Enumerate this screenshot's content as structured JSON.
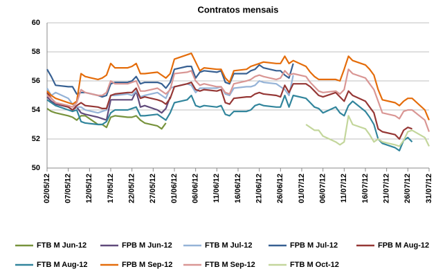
{
  "chart_data": {
    "type": "line",
    "title": "Contratos mensais",
    "x": [
      "02/05/12",
      "03/05/12",
      "04/05/12",
      "07/05/12",
      "08/05/12",
      "09/05/12",
      "10/05/12",
      "11/05/12",
      "14/05/12",
      "15/05/12",
      "16/05/12",
      "17/05/12",
      "18/05/12",
      "21/05/12",
      "22/05/12",
      "23/05/12",
      "24/05/12",
      "25/05/12",
      "28/05/12",
      "29/05/12",
      "30/05/12",
      "31/05/12",
      "01/06/12",
      "04/06/12",
      "05/06/12",
      "06/06/12",
      "07/06/12",
      "08/06/12",
      "11/06/12",
      "12/06/12",
      "13/06/12",
      "14/06/12",
      "15/06/12",
      "18/06/12",
      "19/06/12",
      "20/06/12",
      "21/06/12",
      "22/06/12",
      "25/06/12",
      "26/06/12",
      "27/06/12",
      "28/06/12",
      "29/06/12",
      "02/07/12",
      "03/07/12",
      "04/07/12",
      "05/07/12",
      "06/07/12",
      "09/07/12",
      "10/07/12",
      "11/07/12",
      "12/07/12",
      "13/07/12",
      "16/07/12",
      "17/07/12",
      "18/07/12",
      "19/07/12",
      "20/07/12",
      "23/07/12",
      "24/07/12",
      "25/07/12",
      "26/07/12",
      "27/07/12",
      "30/07/12",
      "31/07/12"
    ],
    "xlim": [
      "02/05/12",
      "31/07/12"
    ],
    "xticks": [
      "02/05/12",
      "07/05/12",
      "12/05/12",
      "17/05/12",
      "22/05/12",
      "27/05/12",
      "01/06/12",
      "06/06/12",
      "11/06/12",
      "16/06/12",
      "21/06/12",
      "26/06/12",
      "01/07/12",
      "06/07/12",
      "11/07/12",
      "16/07/12",
      "21/07/12",
      "26/07/12",
      "31/07/12"
    ],
    "ylim": [
      50,
      60
    ],
    "yticks": [
      50,
      52,
      54,
      56,
      58,
      60
    ],
    "grid": true,
    "series": [
      {
        "name": "FTB M Jun-12",
        "color": "#77933c",
        "values": [
          54.1,
          53.9,
          53.8,
          53.6,
          53.5,
          53.3,
          53.6,
          53.6,
          53.0,
          53.0,
          52.8,
          53.5,
          53.6,
          53.5,
          53.5,
          53.6,
          53.3,
          53.1,
          52.9,
          52.7,
          53.1,
          null,
          null,
          null,
          null,
          null,
          null,
          null,
          null,
          null,
          null,
          null,
          null,
          null,
          null,
          null,
          null,
          null,
          null,
          null,
          null,
          null,
          null,
          null,
          null,
          null,
          null,
          null,
          null,
          null,
          null,
          null,
          null,
          null,
          null,
          null,
          null,
          null,
          null,
          null,
          null,
          null,
          null,
          null,
          null
        ]
      },
      {
        "name": "FPB M Jun-12",
        "color": "#604a7b",
        "values": [
          54.9,
          54.6,
          54.4,
          54.2,
          54.0,
          54.2,
          53.8,
          53.7,
          53.5,
          53.4,
          53.3,
          54.7,
          54.7,
          54.7,
          54.7,
          55.3,
          54.2,
          54.3,
          54.0,
          53.8,
          54.1,
          54.9,
          null,
          null,
          null,
          null,
          null,
          null,
          null,
          null,
          null,
          null,
          null,
          null,
          null,
          null,
          null,
          null,
          null,
          null,
          null,
          null,
          null,
          null,
          null,
          null,
          null,
          null,
          null,
          null,
          null,
          null,
          null,
          null,
          null,
          null,
          null,
          null,
          null,
          null,
          null,
          null,
          null,
          null,
          null
        ]
      },
      {
        "name": "FTB M Jul-12",
        "color": "#95b3d7",
        "values": [
          55.5,
          55.0,
          55.2,
          54.8,
          54.4,
          54.2,
          54.2,
          54.0,
          53.8,
          53.9,
          54.0,
          55.0,
          55.0,
          55.1,
          55.0,
          55.3,
          54.9,
          55.0,
          55.2,
          55.0,
          54.8,
          55.5,
          55.6,
          55.8,
          55.7,
          55.2,
          55.5,
          55.5,
          55.5,
          55.6,
          55.1,
          55.0,
          55.5,
          55.6,
          55.6,
          55.7,
          56.0,
          55.9,
          55.8,
          55.6,
          55.4,
          55.0,
          56.4,
          null,
          null,
          null,
          null,
          null,
          null,
          null,
          null,
          null,
          null,
          null,
          null,
          null,
          null,
          null,
          null,
          null,
          null,
          null,
          null,
          null,
          null
        ]
      },
      {
        "name": "FPB M Jul-12",
        "color": "#376092",
        "values": [
          56.8,
          56.3,
          55.7,
          55.6,
          55.6,
          55.1,
          55.2,
          55.2,
          55.0,
          54.9,
          55.0,
          55.8,
          55.9,
          55.9,
          56.0,
          56.3,
          55.8,
          55.9,
          55.9,
          55.8,
          55.5,
          55.9,
          56.8,
          57.0,
          57.0,
          56.2,
          56.6,
          56.7,
          56.6,
          56.7,
          55.9,
          55.8,
          56.5,
          56.5,
          56.7,
          56.8,
          57.1,
          56.9,
          56.7,
          56.7,
          56.4,
          56.2,
          57.2,
          null,
          null,
          null,
          null,
          null,
          null,
          null,
          null,
          null,
          null,
          null,
          null,
          null,
          null,
          null,
          null,
          null,
          null,
          null,
          null,
          null,
          null
        ]
      },
      {
        "name": "FPB M Aug-12",
        "color": "#953735",
        "values": [
          55.2,
          54.8,
          54.5,
          54.2,
          54.0,
          54.3,
          54.5,
          54.3,
          54.2,
          54.1,
          54.1,
          55.0,
          55.1,
          55.2,
          55.2,
          55.5,
          54.8,
          54.9,
          54.7,
          54.6,
          54.4,
          54.8,
          55.6,
          55.8,
          55.9,
          55.4,
          55.3,
          55.4,
          55.3,
          55.4,
          54.5,
          54.4,
          54.8,
          54.9,
          54.9,
          55.1,
          55.2,
          55.1,
          55.0,
          54.9,
          55.7,
          55.2,
          55.8,
          55.8,
          55.6,
          55.3,
          55.0,
          54.9,
          55.2,
          54.9,
          54.6,
          55.3,
          55.0,
          54.6,
          54.2,
          53.8,
          52.7,
          52.5,
          52.3,
          52.0,
          52.6,
          52.8,
          52.7,
          null,
          null
        ]
      },
      {
        "name": "FTB M Aug-12",
        "color": "#31859c",
        "values": [
          54.7,
          54.5,
          54.3,
          54.0,
          53.9,
          54.0,
          53.2,
          53.1,
          53.0,
          53.0,
          53.2,
          53.8,
          54.0,
          54.0,
          54.1,
          54.2,
          53.6,
          53.6,
          53.7,
          53.5,
          53.3,
          53.8,
          54.5,
          54.7,
          55.0,
          54.3,
          54.2,
          54.3,
          54.2,
          54.3,
          53.7,
          53.6,
          53.9,
          53.9,
          54.0,
          54.3,
          54.4,
          54.3,
          54.2,
          54.2,
          55.0,
          54.2,
          55.0,
          54.8,
          54.5,
          54.2,
          54.1,
          53.8,
          54.2,
          53.8,
          53.6,
          54.3,
          54.6,
          53.9,
          53.5,
          53.0,
          52.0,
          51.7,
          51.4,
          51.2,
          51.9,
          52.1,
          51.8,
          null,
          null
        ]
      },
      {
        "name": "FPB M Sep-12",
        "color": "#e46c0a",
        "values": [
          55.3,
          55.0,
          54.8,
          54.5,
          54.4,
          54.6,
          56.5,
          56.3,
          56.1,
          56.2,
          56.4,
          57.2,
          56.9,
          56.9,
          57.0,
          57.2,
          56.5,
          56.5,
          56.6,
          56.4,
          56.2,
          56.5,
          57.5,
          57.8,
          57.9,
          57.3,
          56.7,
          56.9,
          56.8,
          56.8,
          56.2,
          55.9,
          56.7,
          56.8,
          57.0,
          57.1,
          57.2,
          57.3,
          57.2,
          57.2,
          57.7,
          57.2,
          57.4,
          57.0,
          56.6,
          56.3,
          56.1,
          56.1,
          56.1,
          56.0,
          56.8,
          57.7,
          57.4,
          57.1,
          56.8,
          56.4,
          55.4,
          54.7,
          54.5,
          54.3,
          54.6,
          54.8,
          54.8,
          54.0,
          53.3
        ]
      },
      {
        "name": "FTB M Sep-12",
        "color": "#d99694",
        "values": [
          55.0,
          54.8,
          54.5,
          54.3,
          54.2,
          54.5,
          55.4,
          55.2,
          55.0,
          55.0,
          55.2,
          56.0,
          55.8,
          55.8,
          55.9,
          56.0,
          55.3,
          55.3,
          55.5,
          55.3,
          55.1,
          55.4,
          56.5,
          56.6,
          56.7,
          56.0,
          55.7,
          55.8,
          55.6,
          55.6,
          55.2,
          55.1,
          55.8,
          56.0,
          56.1,
          56.3,
          56.4,
          56.3,
          56.1,
          56.2,
          56.7,
          56.4,
          56.5,
          56.3,
          55.9,
          55.6,
          55.3,
          55.2,
          55.3,
          55.1,
          55.4,
          56.8,
          56.5,
          56.2,
          55.8,
          55.4,
          54.6,
          53.8,
          53.6,
          53.4,
          53.9,
          54.0,
          54.0,
          53.3,
          52.5
        ]
      },
      {
        "name": "FTB M Oct-12",
        "color": "#c3d69b",
        "values": [
          null,
          null,
          null,
          null,
          null,
          null,
          null,
          null,
          null,
          null,
          null,
          null,
          null,
          null,
          null,
          null,
          null,
          null,
          null,
          null,
          null,
          null,
          null,
          null,
          null,
          null,
          null,
          null,
          null,
          null,
          null,
          null,
          null,
          null,
          null,
          null,
          null,
          null,
          null,
          null,
          null,
          null,
          null,
          53.0,
          52.8,
          52.6,
          52.6,
          52.2,
          51.8,
          51.6,
          51.8,
          53.6,
          53.0,
          52.7,
          52.3,
          51.8,
          52.0,
          51.8,
          51.6,
          51.5,
          51.9,
          52.5,
          52.6,
          52.1,
          51.5
        ]
      }
    ]
  }
}
